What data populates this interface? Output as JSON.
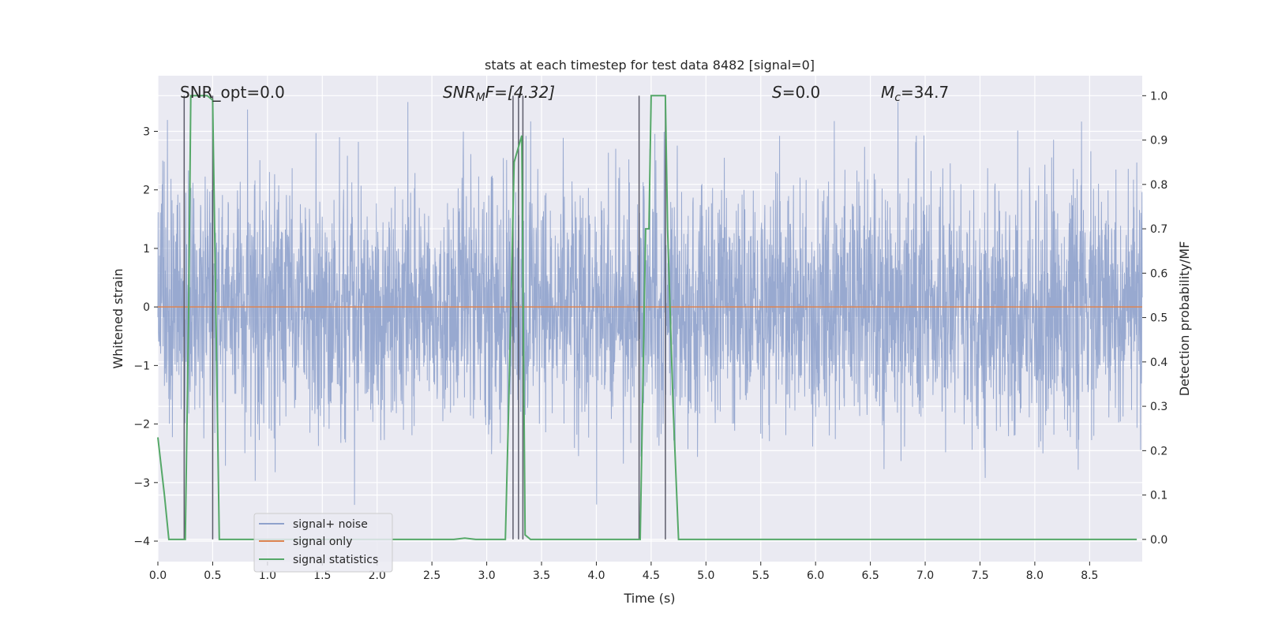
{
  "chart_data": {
    "type": "line",
    "title": "stats at each timestep for test data 8482 [signal=0]",
    "xlabel": "Time (s)",
    "ylabel": "Whitened strain",
    "y2label": "Detection probability/MF",
    "xlim": [
      0.0,
      8.98
    ],
    "ylim": [
      -4.35,
      3.95
    ],
    "y2lim": [
      -0.05,
      1.045
    ],
    "xticks": [
      "0.0",
      "0.5",
      "1.0",
      "1.5",
      "2.0",
      "2.5",
      "3.0",
      "3.5",
      "4.0",
      "4.5",
      "5.0",
      "5.5",
      "6.0",
      "6.5",
      "7.0",
      "7.5",
      "8.0",
      "8.5"
    ],
    "yticks": [
      "−4",
      "−3",
      "−2",
      "−1",
      "0",
      "1",
      "2",
      "3"
    ],
    "y2ticks": [
      "0.0",
      "0.1",
      "0.2",
      "0.3",
      "0.4",
      "0.5",
      "0.6",
      "0.7",
      "0.8",
      "0.9",
      "1.0"
    ],
    "grid": true,
    "legend_position": "lower-left",
    "annotations": {
      "snr_opt": "SNR_opt=0.0",
      "snr_mf_base": "SNR",
      "snr_mf_sub": "M",
      "snr_mf_rest": "F=[4.32]",
      "s_base": "S",
      "s_rest": "=0.0",
      "mc_base": "M",
      "mc_sub": "c",
      "mc_rest": "=34.7"
    },
    "series": [
      {
        "name": "signal+ noise",
        "color": "#8fa2cc",
        "axis": "left",
        "description_values": "noise-dominated whitened strain, roughly within ±2.5, occasional excursions to about ±3.5"
      },
      {
        "name": "signal only",
        "color": "#dd8452",
        "axis": "left",
        "x": [
          0.0,
          8.98
        ],
        "y": [
          0.0,
          0.0
        ]
      },
      {
        "name": "signal statistics",
        "color": "#55a868",
        "axis": "right",
        "x": [
          0.0,
          0.06,
          0.1,
          0.15,
          0.2,
          0.25,
          0.28,
          0.3,
          0.32,
          0.4,
          0.45,
          0.5,
          0.53,
          0.56,
          0.6,
          1.0,
          2.0,
          2.7,
          2.8,
          2.9,
          3.0,
          3.1,
          3.17,
          3.2,
          3.25,
          3.32,
          3.35,
          3.4,
          3.5,
          4.0,
          4.2,
          4.4,
          4.45,
          4.48,
          4.5,
          4.6,
          4.63,
          4.65,
          4.7,
          4.75,
          5.0,
          6.0,
          7.0,
          8.0,
          8.93
        ],
        "y": [
          0.23,
          0.1,
          0.0,
          0.0,
          0.0,
          0.0,
          0.5,
          1.0,
          1.0,
          1.0,
          1.0,
          0.99,
          0.5,
          0.0,
          0.0,
          0.0,
          0.0,
          0.0,
          0.003,
          0.0,
          0.0,
          0.0,
          0.0,
          0.3,
          0.85,
          0.91,
          0.01,
          0.0,
          0.0,
          0.0,
          0.0,
          0.0,
          0.7,
          0.7,
          1.0,
          1.0,
          1.0,
          0.7,
          0.3,
          0.0,
          0.0,
          0.0,
          0.0,
          0.0,
          0.0
        ]
      }
    ],
    "vertical_markers": {
      "color": "#5c5c6a",
      "x": [
        0.24,
        0.5,
        3.24,
        3.29,
        3.33,
        4.39,
        4.63
      ],
      "top_y2": 1.0,
      "bottom_y2": 0.0
    }
  }
}
